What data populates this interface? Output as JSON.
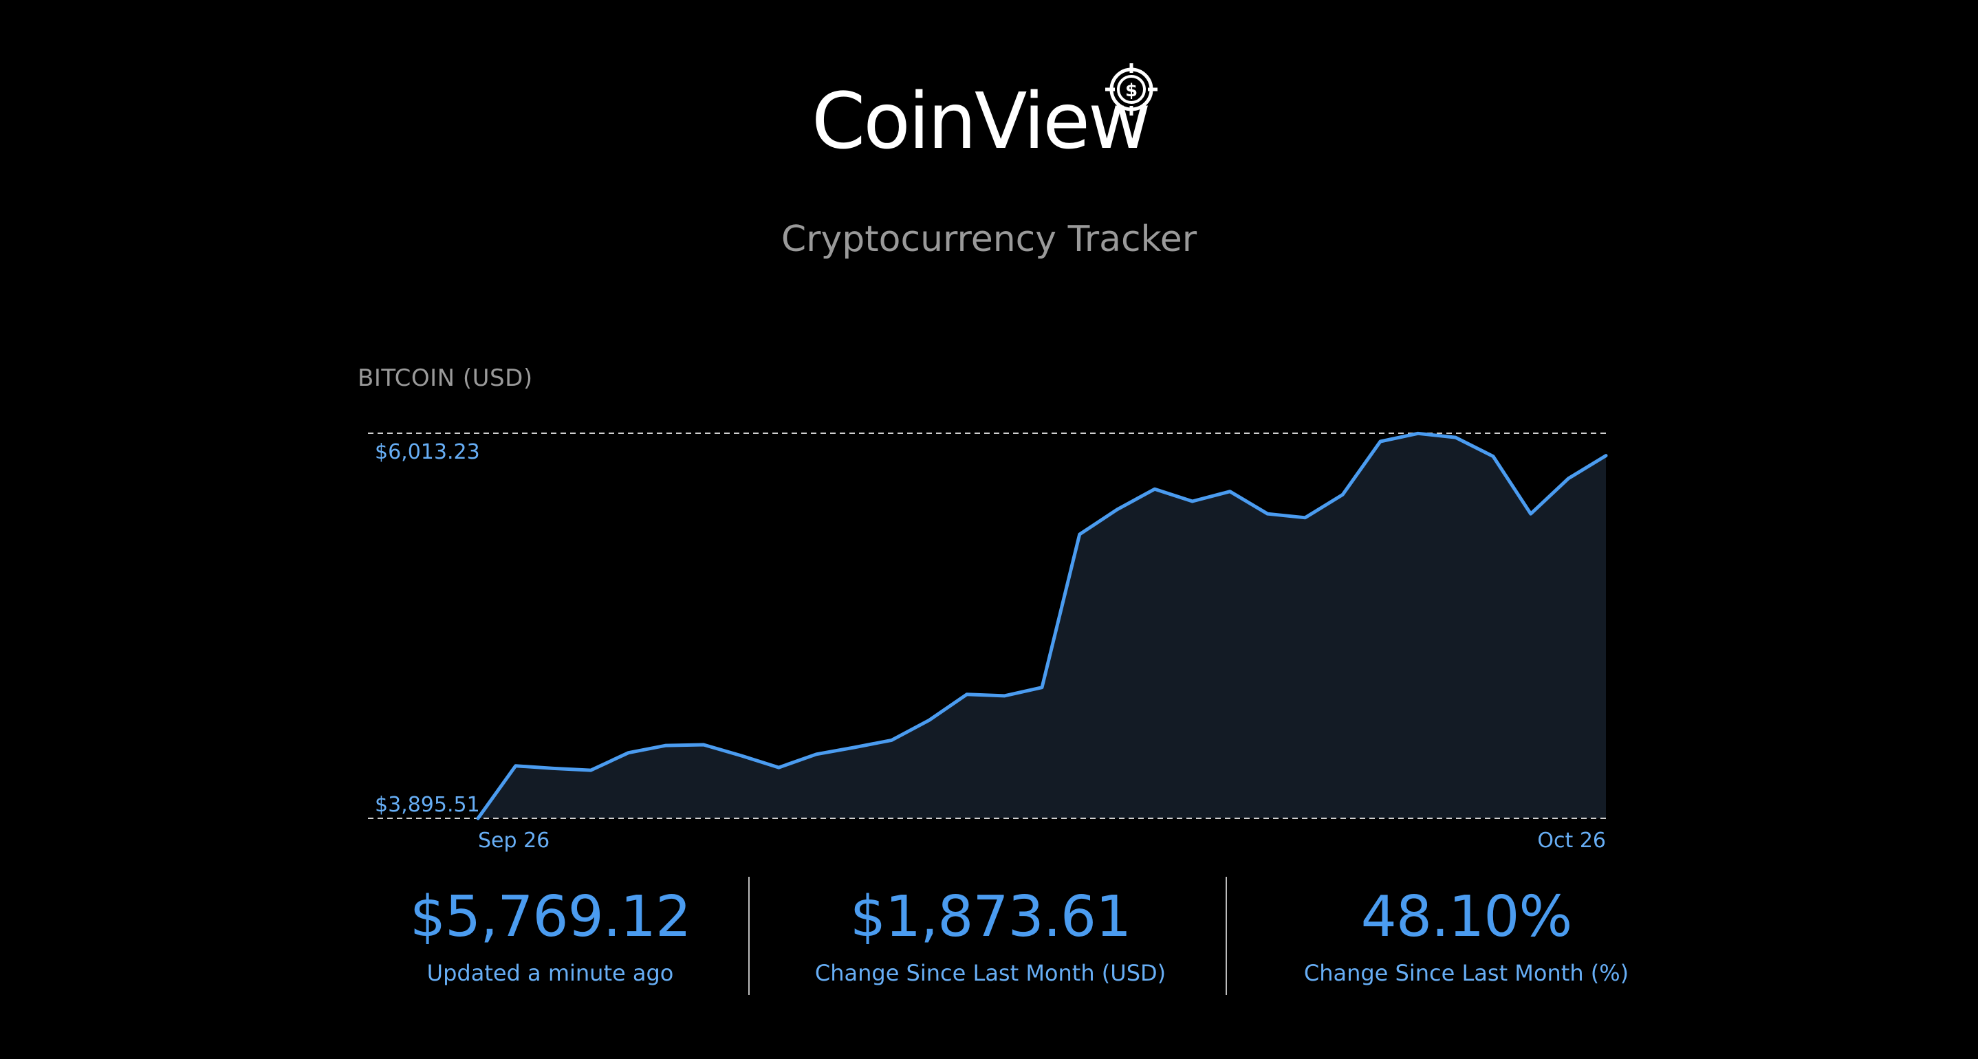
{
  "header": {
    "logo_text": "CoinView",
    "subtitle": "Cryptocurrency Tracker"
  },
  "colors": {
    "background": "#000000",
    "line": "#4b9cf0",
    "area": "#131b25",
    "accent_text": "#67aef5",
    "muted_text": "#9a9a9a"
  },
  "chart_data": {
    "type": "area",
    "title": "BITCOIN (USD)",
    "x_labels": [
      "Sep 26",
      "Oct 26"
    ],
    "y_labels": [
      "$6,013.23",
      "$3,895.51"
    ],
    "ylim": [
      3895.51,
      6013.23
    ],
    "grid": "dashed lines at min and max",
    "series": [
      {
        "values": [
          3895.51,
          4184,
          4170,
          4160,
          4256,
          4296,
          4300,
          4240,
          4175,
          4248,
          4285,
          4325,
          4435,
          4577,
          4569,
          4615,
          5457,
          5594,
          5706,
          5639,
          5693,
          5570,
          5549,
          5676,
          5968,
          6012,
          5990,
          5886,
          5570,
          5764,
          5890
        ]
      }
    ]
  },
  "stats": [
    {
      "value": "$5,769.12",
      "label": "Updated a minute ago"
    },
    {
      "value": "$1,873.61",
      "label": "Change Since Last Month (USD)"
    },
    {
      "value": "48.10%",
      "label": "Change Since Last Month (%)"
    }
  ]
}
